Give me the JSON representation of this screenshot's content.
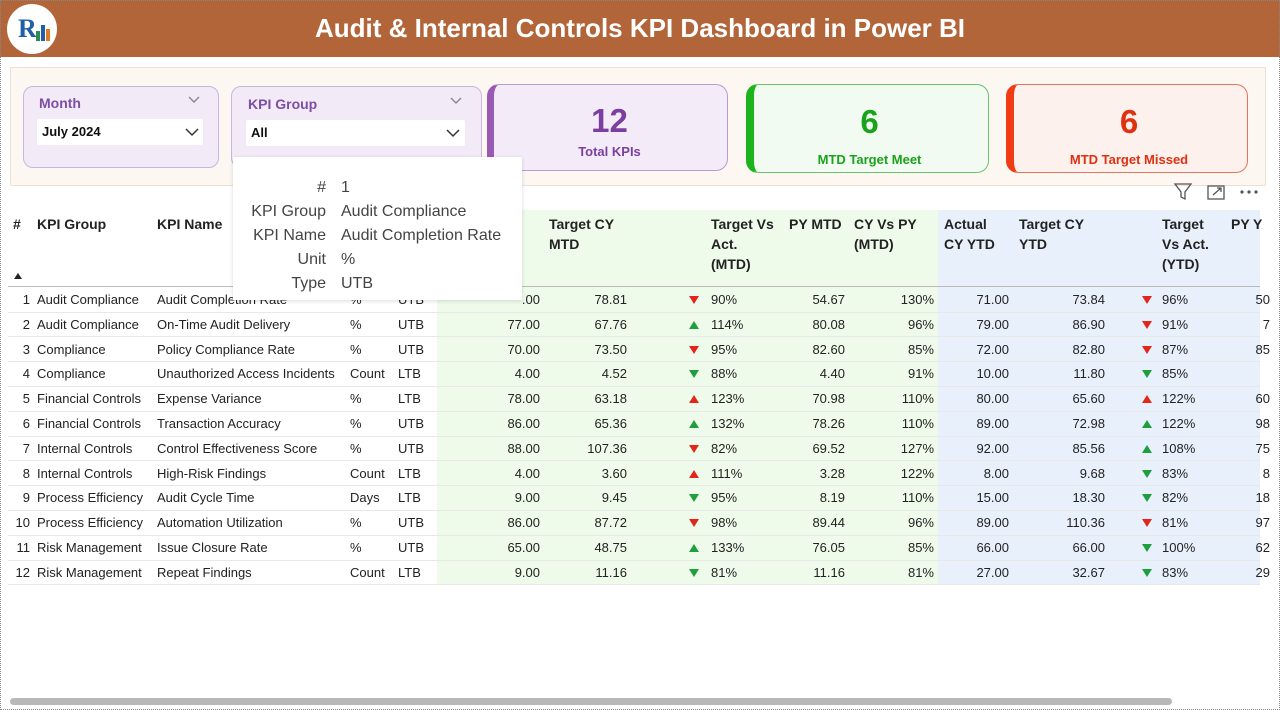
{
  "header": {
    "title": "Audit & Internal Controls KPI Dashboard in Power BI"
  },
  "slicers": [
    {
      "label": "Month",
      "value": "July 2024"
    },
    {
      "label": "KPI Group",
      "value": "All"
    }
  ],
  "cards": [
    {
      "value": 12,
      "label": "Total KPIs"
    },
    {
      "value": 6,
      "label": "MTD Target Meet"
    },
    {
      "value": 6,
      "label": "MTD Target Missed"
    }
  ],
  "tooltip": {
    "rows": [
      [
        "#",
        "1"
      ],
      [
        "KPI Group",
        "Audit Compliance"
      ],
      [
        "KPI Name",
        "Audit Completion Rate"
      ],
      [
        "Unit",
        "%"
      ],
      [
        "Type",
        "UTB"
      ]
    ]
  },
  "table": {
    "headers": [
      "#",
      "KPI Group",
      "KPI Name",
      "Target CY MTD",
      "Target Vs Act. (MTD)",
      "PY MTD",
      "CY Vs PY (MTD)",
      "Actual CY YTD",
      "Target CY YTD",
      "Target Vs Act. (YTD)",
      "PY Y"
    ],
    "rows": [
      {
        "cells": [
          "1",
          "Audit Compliance",
          "Audit Completion Rate",
          "%",
          "UTB",
          ".00",
          "78.81",
          "90%",
          "54.67",
          "130%",
          "71.00",
          "73.84",
          "96%",
          "50"
        ],
        "arrows": [
          [
            "down",
            "#e3261c"
          ],
          [
            "down",
            "#e3261c"
          ]
        ]
      },
      {
        "cells": [
          "2",
          "Audit Compliance",
          "On-Time Audit Delivery",
          "%",
          "UTB",
          "77.00",
          "67.76",
          "114%",
          "80.08",
          "96%",
          "79.00",
          "86.90",
          "91%",
          "7"
        ],
        "arrows": [
          [
            "up",
            "#1e9e3c"
          ],
          [
            "down",
            "#e3261c"
          ]
        ]
      },
      {
        "cells": [
          "3",
          "Compliance",
          "Policy Compliance Rate",
          "%",
          "UTB",
          "70.00",
          "73.50",
          "95%",
          "82.60",
          "85%",
          "72.00",
          "82.80",
          "87%",
          "85"
        ],
        "arrows": [
          [
            "down",
            "#e3261c"
          ],
          [
            "down",
            "#e3261c"
          ]
        ]
      },
      {
        "cells": [
          "4",
          "Compliance",
          "Unauthorized Access Incidents",
          "Count",
          "LTB",
          "4.00",
          "4.52",
          "88%",
          "4.40",
          "91%",
          "10.00",
          "11.80",
          "85%",
          null
        ],
        "arrows": [
          [
            "down",
            "#1e9e3c"
          ],
          [
            "down",
            "#1e9e3c"
          ]
        ]
      },
      {
        "cells": [
          "5",
          "Financial Controls",
          "Expense Variance",
          "%",
          "LTB",
          "78.00",
          "63.18",
          "123%",
          "70.98",
          "110%",
          "80.00",
          "65.60",
          "122%",
          "60"
        ],
        "arrows": [
          [
            "up",
            "#e3261c"
          ],
          [
            "up",
            "#e3261c"
          ]
        ]
      },
      {
        "cells": [
          "6",
          "Financial Controls",
          "Transaction Accuracy",
          "%",
          "UTB",
          "86.00",
          "65.36",
          "132%",
          "78.26",
          "110%",
          "89.00",
          "72.98",
          "122%",
          "98"
        ],
        "arrows": [
          [
            "up",
            "#1e9e3c"
          ],
          [
            "up",
            "#1e9e3c"
          ]
        ]
      },
      {
        "cells": [
          "7",
          "Internal Controls",
          "Control Effectiveness Score",
          "%",
          "UTB",
          "88.00",
          "107.36",
          "82%",
          "69.52",
          "127%",
          "92.00",
          "85.56",
          "108%",
          "75"
        ],
        "arrows": [
          [
            "down",
            "#e3261c"
          ],
          [
            "up",
            "#1e9e3c"
          ]
        ]
      },
      {
        "cells": [
          "8",
          "Internal Controls",
          "High-Risk Findings",
          "Count",
          "LTB",
          "4.00",
          "3.60",
          "111%",
          "3.28",
          "122%",
          "8.00",
          "9.68",
          "83%",
          "8"
        ],
        "arrows": [
          [
            "up",
            "#e3261c"
          ],
          [
            "down",
            "#1e9e3c"
          ]
        ]
      },
      {
        "cells": [
          "9",
          "Process Efficiency",
          "Audit Cycle Time",
          "Days",
          "LTB",
          "9.00",
          "9.45",
          "95%",
          "8.19",
          "110%",
          "15.00",
          "18.30",
          "82%",
          "18"
        ],
        "arrows": [
          [
            "down",
            "#1e9e3c"
          ],
          [
            "down",
            "#1e9e3c"
          ]
        ]
      },
      {
        "cells": [
          "10",
          "Process Efficiency",
          "Automation Utilization",
          "%",
          "UTB",
          "86.00",
          "87.72",
          "98%",
          "89.44",
          "96%",
          "89.00",
          "110.36",
          "81%",
          "97"
        ],
        "arrows": [
          [
            "down",
            "#e3261c"
          ],
          [
            "down",
            "#e3261c"
          ]
        ]
      },
      {
        "cells": [
          "11",
          "Risk Management",
          "Issue Closure Rate",
          "%",
          "UTB",
          "65.00",
          "48.75",
          "133%",
          "76.05",
          "85%",
          "66.00",
          "66.00",
          "100%",
          "62"
        ],
        "arrows": [
          [
            "up",
            "#1e9e3c"
          ],
          [
            "down",
            "#1e9e3c"
          ]
        ]
      },
      {
        "cells": [
          "12",
          "Risk Management",
          "Repeat Findings",
          "Count",
          "LTB",
          "9.00",
          "11.16",
          "81%",
          "11.16",
          "81%",
          "27.00",
          "32.67",
          "83%",
          "29"
        ],
        "arrows": [
          [
            "down",
            "#1e9e3c"
          ],
          [
            "down",
            "#1e9e3c"
          ]
        ]
      }
    ]
  }
}
